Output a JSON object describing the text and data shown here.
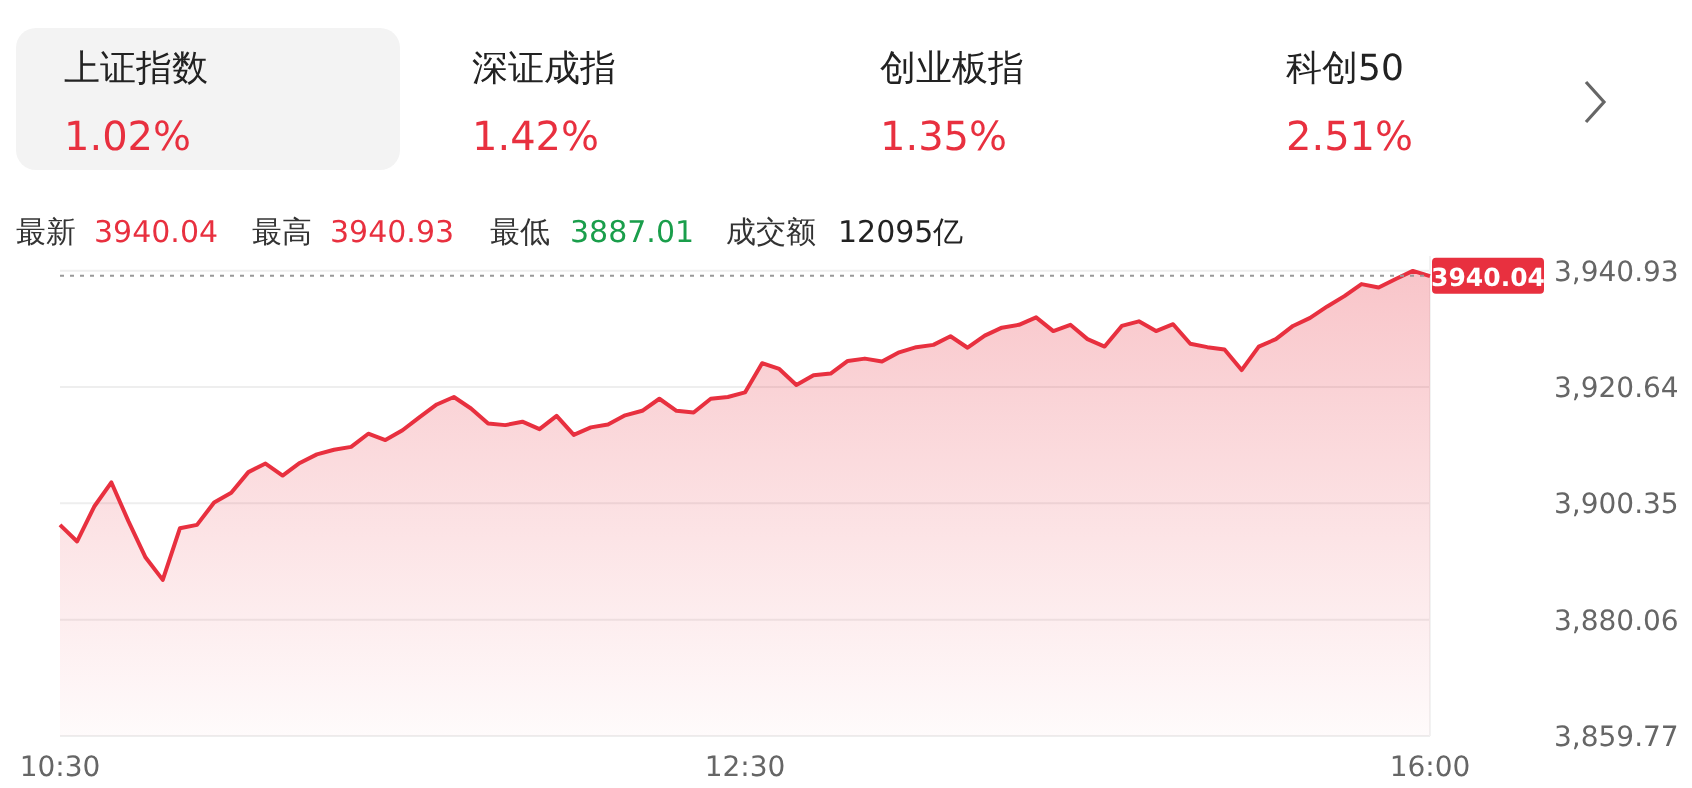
{
  "chart_data": [
    {
      "type": "other",
      "annotations": [
        "上证指数",
        "1.02%",
        "深证成指",
        "1.42%",
        "创业板指",
        "1.35%",
        "科创50",
        "2.51%"
      ]
    },
    {
      "type": "area",
      "annotations": [
        "最新",
        "3940.04",
        "最高",
        "3940.93",
        "最低",
        "3887.01",
        "成交额",
        "12095亿"
      ],
      "series": [
        {
          "color": "#e8303f",
          "values": [
            3896.6,
            3893.7,
            3899.8,
            3904.0,
            3897.2,
            3890.9,
            3887.0,
            3896.0,
            3896.6,
            3900.5,
            3902.2,
            3905.8,
            3907.3,
            3905.2,
            3907.4,
            3908.9,
            3909.7,
            3910.2,
            3912.5,
            3911.4,
            3913.1,
            3915.4,
            3917.6,
            3918.9,
            3916.9,
            3914.3,
            3914.0,
            3914.6,
            3913.3,
            3915.6,
            3912.3,
            3913.6,
            3914.1,
            3915.7,
            3916.5,
            3918.6,
            3916.5,
            3916.2,
            3918.6,
            3918.9,
            3919.7,
            3924.8,
            3923.8,
            3921.0,
            3922.7,
            3923.0,
            3925.2,
            3925.6,
            3925.1,
            3926.7,
            3927.6,
            3928.0,
            3929.5,
            3927.5,
            3929.6,
            3931.0,
            3931.5,
            3932.8,
            3930.4,
            3931.5,
            3929.0,
            3927.7,
            3931.3,
            3932.1,
            3930.4,
            3931.6,
            3928.2,
            3927.6,
            3927.2,
            3923.6,
            3927.7,
            3929.0,
            3931.3,
            3932.7,
            3934.7,
            3936.5,
            3938.6,
            3938.0,
            3939.5,
            3940.9,
            3940.0
          ]
        }
      ],
      "categories": [
        "10:30",
        null,
        null,
        null,
        null,
        null,
        null,
        null,
        null,
        null,
        null,
        null,
        null,
        null,
        null,
        null,
        null,
        null,
        null,
        null,
        null,
        null,
        null,
        null,
        null,
        null,
        null,
        null,
        null,
        null,
        null,
        null,
        null,
        null,
        null,
        null,
        null,
        null,
        null,
        null,
        "12:30",
        null,
        null,
        null,
        null,
        null,
        null,
        null,
        null,
        null,
        null,
        null,
        null,
        null,
        null,
        null,
        null,
        null,
        null,
        null,
        null,
        null,
        null,
        null,
        null,
        null,
        null,
        null,
        null,
        null,
        null,
        null,
        null,
        null,
        null,
        null,
        null,
        null,
        null,
        null,
        "16:00"
      ],
      "ylim": [
        3859.77,
        3943.5
      ],
      "yticks": [
        {
          "value": 3859.77,
          "label": "3,859.77"
        },
        {
          "value": 3880.06,
          "label": "3,880.06"
        },
        {
          "value": 3900.35,
          "label": "3,900.35"
        },
        {
          "value": 3920.64,
          "label": "3,920.64"
        },
        {
          "value": 3940.93,
          "label": "3,940.93"
        }
      ],
      "grid": "y",
      "ref_lines": [
        {
          "axis": "y",
          "value": 3940.04,
          "label": "3940.04",
          "color": "#999999",
          "line_style": "dotted"
        }
      ]
    }
  ]
}
